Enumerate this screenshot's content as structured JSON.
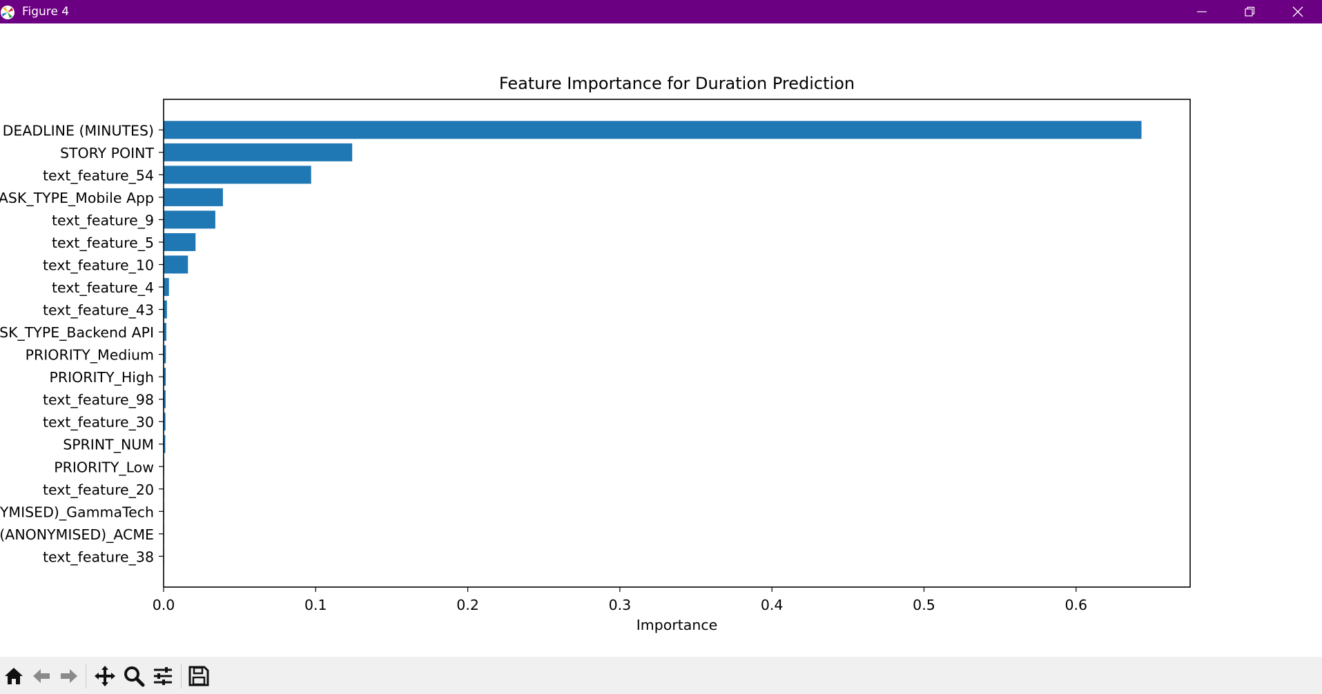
{
  "window": {
    "title": "Figure 4",
    "titlebar_color": "#6c0082"
  },
  "toolbar": {
    "icons": [
      "home-icon",
      "back-icon",
      "forward-icon",
      "pan-icon",
      "zoom-icon",
      "configure-subplots-icon",
      "save-icon"
    ]
  },
  "chart_data": {
    "type": "bar",
    "orientation": "horizontal",
    "title": "Feature Importance for Duration Prediction",
    "xlabel": "Importance",
    "ylabel": "",
    "bar_color": "#1f77b4",
    "xlim": [
      0.0,
      0.675
    ],
    "xticks": [
      0.0,
      0.1,
      0.2,
      0.3,
      0.4,
      0.5,
      0.6
    ],
    "xtick_labels": [
      "0.0",
      "0.1",
      "0.2",
      "0.3",
      "0.4",
      "0.5",
      "0.6"
    ],
    "grid": false,
    "categories": [
      "DEADLINE (MINUTES)",
      "STORY POINT",
      "text_feature_54",
      "ASK_TYPE_Mobile App",
      "text_feature_9",
      "text_feature_5",
      "text_feature_10",
      "text_feature_4",
      "text_feature_43",
      "SK_TYPE_Backend API",
      "PRIORITY_Medium",
      "PRIORITY_High",
      "text_feature_98",
      "text_feature_30",
      "SPRINT_NUM",
      "PRIORITY_Low",
      "text_feature_20",
      "YMISED)_GammaTech",
      "(ANONYMISED)_ACME",
      "text_feature_38"
    ],
    "values": [
      0.643,
      0.124,
      0.097,
      0.039,
      0.034,
      0.021,
      0.016,
      0.0035,
      0.0022,
      0.0018,
      0.0015,
      0.0014,
      0.0013,
      0.0012,
      0.0011,
      0.0004,
      0.0003,
      0.0002,
      0.0002,
      0.0001
    ]
  }
}
